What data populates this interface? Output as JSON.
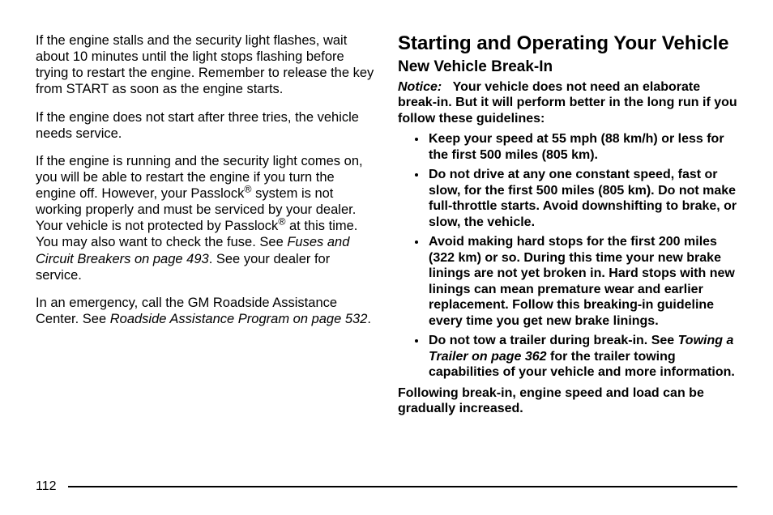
{
  "left": {
    "p1_a": "If the engine stalls and the security light flashes, wait about 10 minutes until the light stops flashing before trying to restart the engine. Remember to release the key from START as soon as the engine starts.",
    "p2": "If the engine does not start after three tries, the vehicle needs service.",
    "p3_a": "If the engine is running and the security light comes on, you will be able to restart the engine if you turn the engine off. However, your Passlock",
    "p3_b": " system is not working properly and must be serviced by your dealer. Your vehicle is not protected by Passlock",
    "p3_c": " at this time. You may also want to check the fuse. See ",
    "p3_ref": "Fuses and Circuit Breakers on page 493",
    "p3_d": ". See your dealer for service.",
    "p4_a": "In an emergency, call the GM Roadside Assistance Center. See ",
    "p4_ref": "Roadside Assistance Program on page 532",
    "p4_b": "."
  },
  "right": {
    "h1": "Starting and Operating Your Vehicle",
    "h2": "New Vehicle Break-In",
    "notice_label": "Notice:",
    "notice_body": "Your vehicle does not need an elaborate break-in. But it will perform better in the long run if you follow these guidelines:",
    "b1": "Keep your speed at 55 mph (88 km/h) or less for the first 500 miles (805 km).",
    "b2": "Do not drive at any one constant speed, fast or slow, for the first 500 miles (805 km). Do not make full-throttle starts. Avoid downshifting to brake, or slow, the vehicle.",
    "b3": "Avoid making hard stops for the first 200 miles (322 km) or so. During this time your new brake linings are not yet broken in. Hard stops with new linings can mean premature wear and earlier replacement. Follow this breaking-in guideline every time you get new brake linings.",
    "b4_a": "Do not tow a trailer during break-in. See ",
    "b4_ref": "Towing a Trailer on page 362",
    "b4_b": " for the trailer towing capabilities of your vehicle and more information.",
    "closing": "Following break-in, engine speed and load can be gradually increased."
  },
  "page_number": "112",
  "reg_mark": "®"
}
